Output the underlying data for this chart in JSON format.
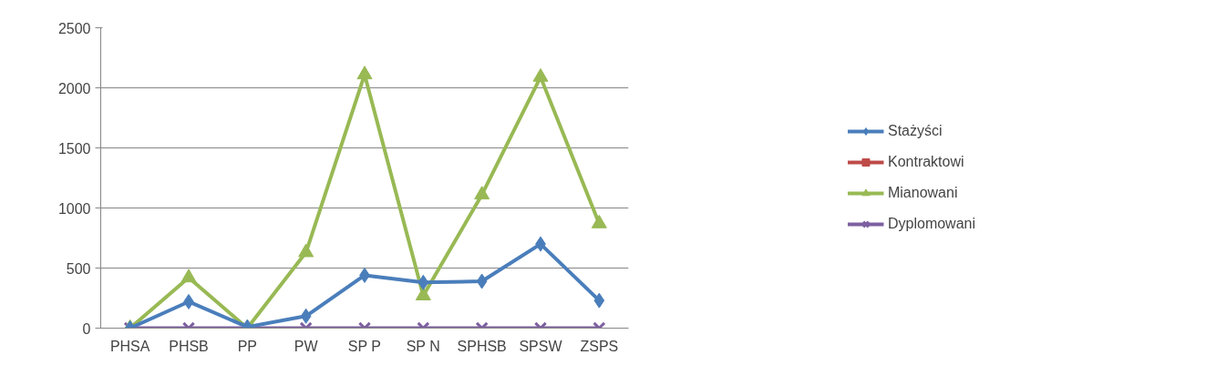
{
  "chart_data": {
    "type": "line",
    "categories": [
      "PHSA",
      "PHSB",
      "PP",
      "PW",
      "SP P",
      "SP N",
      "SPHSB",
      "SPSW",
      "ZSPS"
    ],
    "series": [
      {
        "name": "Stażyści",
        "color": "#4a7ebb",
        "marker": "diamond",
        "values": [
          0,
          220,
          10,
          100,
          440,
          380,
          390,
          700,
          230
        ]
      },
      {
        "name": "Kontraktowi",
        "color": "#be4b48",
        "marker": "square",
        "values": [
          null,
          null,
          null,
          null,
          null,
          null,
          null,
          null,
          null
        ]
      },
      {
        "name": "Mianowani",
        "color": "#98b954",
        "marker": "triangle",
        "values": [
          0,
          420,
          0,
          630,
          2110,
          270,
          1110,
          2090,
          870
        ]
      },
      {
        "name": "Dyplomowani",
        "color": "#7d60a0",
        "marker": "cross",
        "values": [
          0,
          0,
          0,
          0,
          0,
          0,
          0,
          0,
          0
        ]
      }
    ],
    "ylim": [
      0,
      2500
    ],
    "yticks": [
      0,
      500,
      1000,
      1500,
      2000,
      2500
    ],
    "grid": "y",
    "legend": "right",
    "line_style": "solid"
  }
}
